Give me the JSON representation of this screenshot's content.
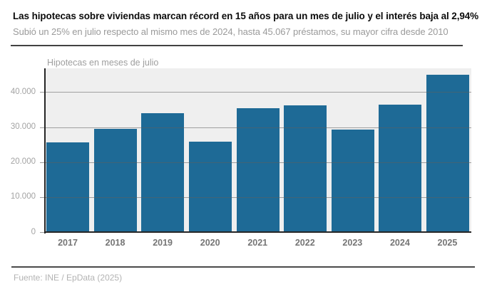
{
  "header": {
    "title": "Las hipotecas sobre viviendas marcan récord en 15 años para un mes de julio y el interés baja al 2,94%",
    "subtitle": "Subió un 25% en julio respecto al mismo mes de 2024, hasta 45.067 préstamos, su mayor cifra desde 2010"
  },
  "footer": {
    "source": "Fuente: INE / EpData (2025)"
  },
  "colors": {
    "bar": "#1e6a96",
    "plot_background": "#efefef",
    "axis": "#262626",
    "gridline": "rgba(95,95,95,0.55)"
  },
  "chart_data": {
    "type": "bar",
    "title": "Hipotecas en meses de julio",
    "xlabel": "",
    "ylabel": "",
    "categories": [
      "2017",
      "2018",
      "2019",
      "2020",
      "2021",
      "2022",
      "2023",
      "2024",
      "2025"
    ],
    "values": [
      25600,
      29600,
      34000,
      25900,
      35400,
      36300,
      29400,
      36500,
      45067
    ],
    "ylim": [
      0,
      46800
    ],
    "yticks": [
      {
        "value": 0,
        "label": "0"
      },
      {
        "value": 10000,
        "label": "10.000"
      },
      {
        "value": 20000,
        "label": "20.000"
      },
      {
        "value": 30000,
        "label": "30.000"
      },
      {
        "value": 40000,
        "label": "40.000"
      }
    ],
    "grid": true,
    "legend": "none",
    "bar_color": "#1e6a96"
  }
}
